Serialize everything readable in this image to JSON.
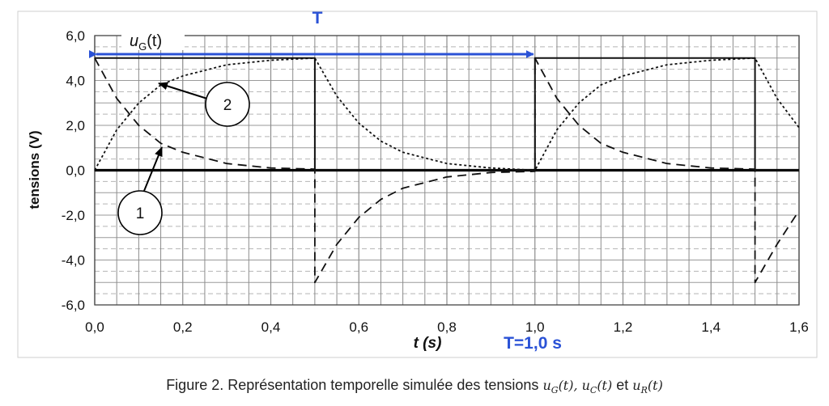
{
  "chart_data": {
    "type": "line",
    "xlabel": "t (s)",
    "ylabel": "tensions (V)",
    "xlim": [
      0,
      1.6
    ],
    "ylim": [
      -6,
      6
    ],
    "x_ticks": [
      "0,0",
      "0,2",
      "0,4",
      "0,6",
      "0,8",
      "1,0",
      "1,2",
      "1,4",
      "1,6"
    ],
    "y_ticks": [
      "6,0",
      "4,0",
      "2,0",
      "0,0",
      "-2,0",
      "-4,0",
      "-6,0"
    ],
    "grid": "on",
    "series": [
      {
        "name": "uG(t)",
        "style": "solid",
        "x": [
          0,
          0.5,
          0.5,
          1.0,
          1.0,
          1.5,
          1.5,
          1.6
        ],
        "y": [
          5,
          5,
          0,
          0,
          5,
          5,
          0,
          0
        ]
      },
      {
        "name": "1",
        "style": "dashed",
        "x": [
          0,
          0.05,
          0.1,
          0.15,
          0.2,
          0.3,
          0.4,
          0.5,
          0.5,
          0.55,
          0.6,
          0.65,
          0.7,
          0.8,
          0.9,
          1.0,
          1.0,
          1.05,
          1.1,
          1.15,
          1.2,
          1.3,
          1.4,
          1.5,
          1.5,
          1.55,
          1.6
        ],
        "y": [
          5,
          3.2,
          2.0,
          1.2,
          0.8,
          0.3,
          0.1,
          0.05,
          -5,
          -3.3,
          -2.1,
          -1.3,
          -0.8,
          -0.3,
          -0.1,
          -0.05,
          5,
          3.2,
          2.0,
          1.2,
          0.8,
          0.3,
          0.1,
          0.05,
          -5,
          -3.3,
          -1.8
        ]
      },
      {
        "name": "2",
        "style": "dotted",
        "x": [
          0,
          0.05,
          0.1,
          0.15,
          0.2,
          0.3,
          0.4,
          0.5,
          0.55,
          0.6,
          0.65,
          0.7,
          0.8,
          0.9,
          1.0,
          1.05,
          1.1,
          1.15,
          1.2,
          1.3,
          1.4,
          1.5,
          1.55,
          1.6
        ],
        "y": [
          0,
          1.8,
          3.0,
          3.8,
          4.2,
          4.7,
          4.9,
          5.0,
          3.3,
          2.1,
          1.3,
          0.8,
          0.3,
          0.1,
          0.0,
          1.8,
          3.0,
          3.8,
          4.2,
          4.7,
          4.9,
          5.0,
          3.2,
          1.9
        ]
      }
    ],
    "annotations": {
      "period_label_top": "T",
      "period_label_bottom": "T=1,0 s",
      "period_arrow_x": [
        0,
        1.0
      ],
      "period_arrow_y": 5.1,
      "circle_1_label": "1",
      "circle_2_label": "2",
      "ug_label_u": "u",
      "ug_label_sub": "G",
      "ug_label_rest": "(t)"
    }
  },
  "caption": {
    "text": "Figure 2. Représentation temporelle simulée des tensions",
    "t1_main": "u",
    "t1_sub": "G",
    "t1_rest": "(t),",
    "t2_main": "u",
    "t2_sub": "C",
    "t2_rest": "(t)",
    "joiner": "et",
    "t3_main": "u",
    "t3_sub": "R",
    "t3_rest": "(t)"
  }
}
